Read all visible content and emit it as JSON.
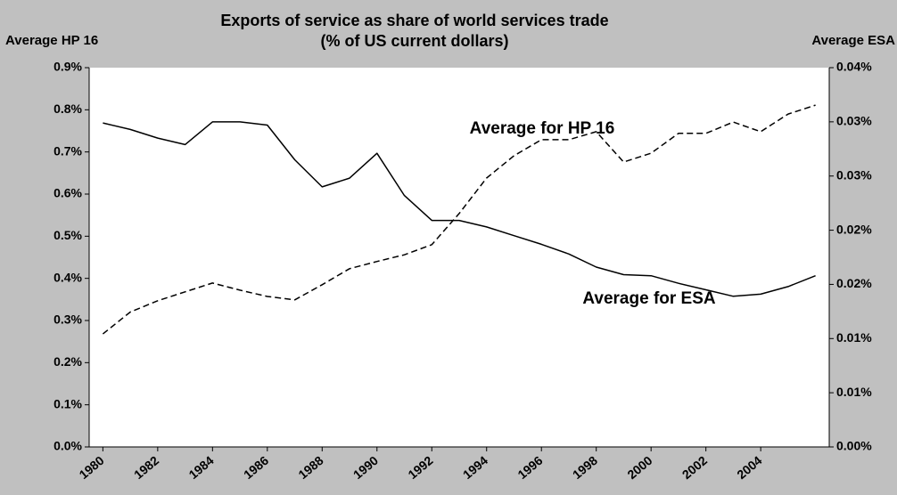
{
  "chart_data": {
    "type": "line",
    "title": "Exports of service as share of world services trade",
    "subtitle": "(% of US current dollars)",
    "y_label": "Average HP 16",
    "y2_label": "Average ESA",
    "x": [
      1980,
      1981,
      1982,
      1983,
      1984,
      1985,
      1986,
      1987,
      1988,
      1989,
      1990,
      1991,
      1992,
      1993,
      1994,
      1995,
      1996,
      1997,
      1998,
      1999,
      2000,
      2001,
      2002,
      2003,
      2004,
      2005,
      2006
    ],
    "xlim": [
      1979.5,
      2006.5
    ],
    "xticks": [
      1980,
      1982,
      1984,
      1986,
      1988,
      1990,
      1992,
      1994,
      1996,
      1998,
      2000,
      2002,
      2004
    ],
    "ylim": [
      0,
      0.9
    ],
    "yticks": [
      {
        "value": 0,
        "label": "0.0%"
      },
      {
        "value": 0.1,
        "label": "0.1%"
      },
      {
        "value": 0.2,
        "label": "0.2%"
      },
      {
        "value": 0.3,
        "label": "0.3%"
      },
      {
        "value": 0.4,
        "label": "0.4%"
      },
      {
        "value": 0.5,
        "label": "0.5%"
      },
      {
        "value": 0.6,
        "label": "0.6%"
      },
      {
        "value": 0.7,
        "label": "0.7%"
      },
      {
        "value": 0.8,
        "label": "0.8%"
      },
      {
        "value": 0.9,
        "label": "0.9%"
      }
    ],
    "y2lim": [
      0,
      0.035
    ],
    "y2ticks": [
      {
        "value": 0,
        "label": "0.00%"
      },
      {
        "value": 0.005,
        "label": "0.01%"
      },
      {
        "value": 0.01,
        "label": "0.01%"
      },
      {
        "value": 0.015,
        "label": "0.02%"
      },
      {
        "value": 0.02,
        "label": "0.02%"
      },
      {
        "value": 0.025,
        "label": "0.03%"
      },
      {
        "value": 0.03,
        "label": "0.03%"
      },
      {
        "value": 0.035,
        "label": "0.04%"
      }
    ],
    "series": [
      {
        "name": "Average for HP 16",
        "color": "#000000",
        "dash": true,
        "values": [
          0.268,
          0.32,
          0.347,
          0.368,
          0.389,
          0.372,
          0.357,
          0.349,
          0.385,
          0.423,
          0.44,
          0.456,
          0.48,
          0.554,
          0.638,
          0.691,
          0.729,
          0.729,
          0.748,
          0.676,
          0.697,
          0.744,
          0.744,
          0.771,
          0.748,
          0.79,
          0.811
        ]
      },
      {
        "name": "Average for  ESA",
        "color": "#000000",
        "dash": false,
        "axis": "y2",
        "values": [
          0.0299,
          0.0293,
          0.0285,
          0.0279,
          0.03,
          0.03,
          0.0297,
          0.0265,
          0.024,
          0.0248,
          0.0271,
          0.0232,
          0.0209,
          0.0209,
          0.0203,
          0.0195,
          0.0187,
          0.0178,
          0.0166,
          0.0159,
          0.0158,
          0.0151,
          0.0145,
          0.0139,
          0.0141,
          0.0148,
          0.0158
        ]
      }
    ]
  }
}
